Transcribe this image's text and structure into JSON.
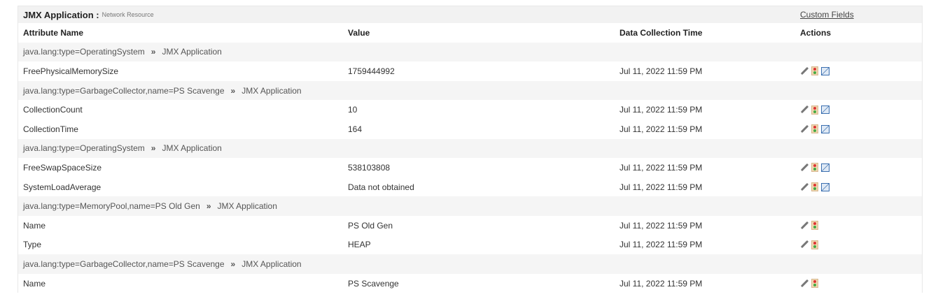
{
  "header": {
    "title": "JMX Application :",
    "subtitle": "Network Resource",
    "custom_fields": "Custom Fields"
  },
  "columns": [
    "Attribute Name",
    "Value",
    "Data Collection Time",
    "Actions"
  ],
  "rows": [
    {
      "type": "group",
      "mbean": "java.lang:type=OperatingSystem",
      "sep": "»",
      "app": "JMX Application"
    },
    {
      "type": "attr",
      "name": "FreePhysicalMemorySize",
      "value": "1759444992",
      "time": "Jul 11, 2022 11:59 PM",
      "graph": true
    },
    {
      "type": "group",
      "mbean": "java.lang:type=GarbageCollector,name=PS Scavenge",
      "sep": "»",
      "app": "JMX Application"
    },
    {
      "type": "attr",
      "name": "CollectionCount",
      "value": "10",
      "time": "Jul 11, 2022 11:59 PM",
      "graph": true
    },
    {
      "type": "attr",
      "name": "CollectionTime",
      "value": "164",
      "time": "Jul 11, 2022 11:59 PM",
      "graph": true
    },
    {
      "type": "group",
      "mbean": "java.lang:type=OperatingSystem",
      "sep": "»",
      "app": "JMX Application"
    },
    {
      "type": "attr",
      "name": "FreeSwapSpaceSize",
      "value": "538103808",
      "time": "Jul 11, 2022 11:59 PM",
      "graph": true
    },
    {
      "type": "attr",
      "name": "SystemLoadAverage",
      "value": "Data not obtained",
      "time": "Jul 11, 2022 11:59 PM",
      "graph": true
    },
    {
      "type": "group",
      "mbean": "java.lang:type=MemoryPool,name=PS Old Gen",
      "sep": "»",
      "app": "JMX Application"
    },
    {
      "type": "attr",
      "name": "Name",
      "value": "PS Old Gen",
      "time": "Jul 11, 2022 11:59 PM",
      "graph": false
    },
    {
      "type": "attr",
      "name": "Type",
      "value": "HEAP",
      "time": "Jul 11, 2022 11:59 PM",
      "graph": false
    },
    {
      "type": "group",
      "mbean": "java.lang:type=GarbageCollector,name=PS Scavenge",
      "sep": "»",
      "app": "JMX Application"
    },
    {
      "type": "attr",
      "name": "Name",
      "value": "PS Scavenge",
      "time": "Jul 11, 2022 11:59 PM",
      "graph": false
    }
  ],
  "icons": {
    "edit": "pencil-icon",
    "threshold": "traffic-light-icon",
    "graph": "graph-icon"
  }
}
